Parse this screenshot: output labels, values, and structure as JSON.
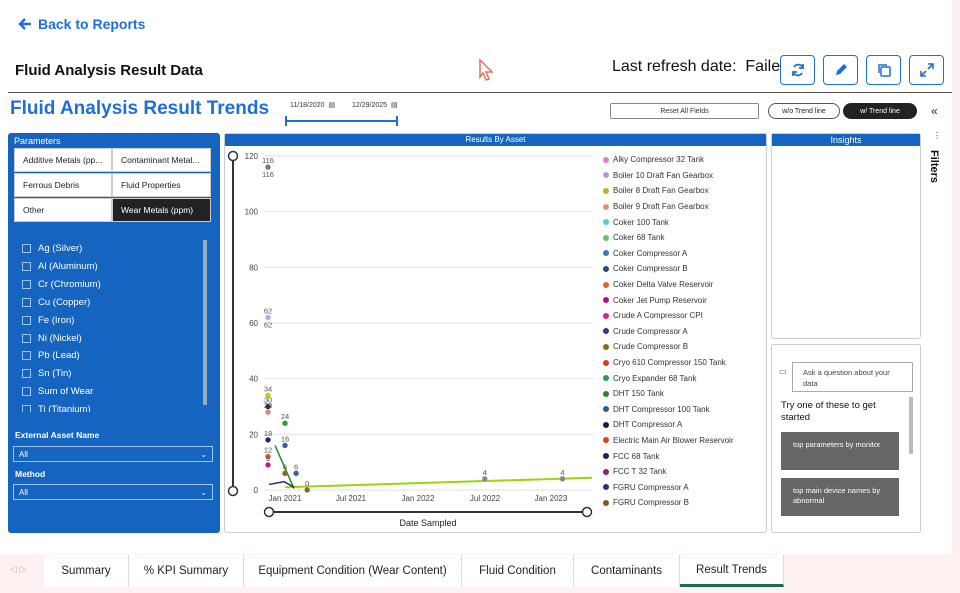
{
  "nav": {
    "back_label": "Back to Reports"
  },
  "header": {
    "title": "Fluid Analysis Result Data",
    "refresh_label": "Last refresh date:",
    "refresh_value": "Failed",
    "buttons": [
      "refresh-icon",
      "edit-icon",
      "copy-icon",
      "expand-icon"
    ]
  },
  "report": {
    "title": "Fluid Analysis Result Trends",
    "date_start": "11/18/2020",
    "date_end": "12/29/2025",
    "reset_label": "Reset All Fields",
    "trend_off_label": "w/o Trend line",
    "trend_on_label": "w/ Trend line"
  },
  "params": {
    "title": "Parameters",
    "buttons": [
      "Additive Metals (pp...",
      "Contaminant Metal...",
      "Ferrous Debris",
      "Fluid Properties",
      "Other",
      "Wear Metals (ppm)"
    ],
    "selected": "Wear Metals (ppm)",
    "checkboxes": [
      "Ag (Silver)",
      "Al (Aluminum)",
      "Cr (Chromium)",
      "Cu (Copper)",
      "Fe (Iron)",
      "Ni (Nickel)",
      "Pb (Lead)",
      "Sn (Tin)",
      "Sum of Wear",
      "Ti (Titanium)"
    ],
    "asset_label": "External Asset Name",
    "asset_value": "All",
    "method_label": "Method",
    "method_value": "All"
  },
  "chart_data": {
    "type": "scatter",
    "title": "Results By Asset",
    "xlabel": "Date Sampled",
    "ylabel": "",
    "ylim": [
      0,
      120
    ],
    "yticks": [
      0,
      20,
      40,
      60,
      80,
      100,
      120
    ],
    "xticks": [
      "Jan 2021",
      "Jul 2021",
      "Jan 2022",
      "Jul 2022",
      "Jan 2023"
    ],
    "points": [
      {
        "date": "2020-12",
        "value": 116,
        "label": "116",
        "color": "#777777"
      },
      {
        "date": "2020-12",
        "value": 62,
        "label": "62",
        "color": "#a0b8e8"
      },
      {
        "date": "2020-12",
        "value": 34,
        "label": "34",
        "color": "#cccc00"
      },
      {
        "date": "2020-12",
        "value": 30,
        "label": "30",
        "color": "#222244"
      },
      {
        "date": "2020-12",
        "value": 28,
        "label": "28",
        "color": "#e08080"
      },
      {
        "date": "2021-01",
        "value": 24,
        "label": "24",
        "color": "#2a9a3a"
      },
      {
        "date": "2020-12",
        "value": 18,
        "label": "18",
        "color": "#1a2a5a"
      },
      {
        "date": "2021-01",
        "value": 16,
        "label": "16",
        "color": "#3a5aa8"
      },
      {
        "date": "2020-12",
        "value": 12,
        "label": "12",
        "color": "#d06030"
      },
      {
        "date": "2020-12",
        "value": 9,
        "label": "9",
        "color": "#c02080"
      },
      {
        "date": "2021-02",
        "value": 6,
        "label": "6",
        "color": "#2a6a9a"
      },
      {
        "date": "2021-01",
        "value": 6,
        "label": "6",
        "color": "#8a6a2a"
      },
      {
        "date": "2021-03",
        "value": 0,
        "label": "0",
        "color": "#8a6a2a"
      },
      {
        "date": "2022-07",
        "value": 4,
        "label": "4",
        "color": "#888888"
      },
      {
        "date": "2023-02",
        "value": 4,
        "label": "4",
        "color": "#888888"
      }
    ],
    "series": [
      {
        "name": "Alky Compressor 32 Tank",
        "color": "#e87ac8"
      },
      {
        "name": "Boiler 10 Draft Fan Gearbox",
        "color": "#b39ddb"
      },
      {
        "name": "Boiler 8 Draft Fan Gearbox",
        "color": "#c8a830"
      },
      {
        "name": "Boiler 9 Draft Fan Gearbox",
        "color": "#e89080"
      },
      {
        "name": "Coker 100 Tank",
        "color": "#40d8c8"
      },
      {
        "name": "Coker 68 Tank",
        "color": "#60c860"
      },
      {
        "name": "Coker Compressor A",
        "color": "#3a78c8"
      },
      {
        "name": "Coker Compressor B",
        "color": "#2a4a7a"
      },
      {
        "name": "Coker Delta Valve Reservoir",
        "color": "#e86020"
      },
      {
        "name": "Coker Jet Pump Reservoir",
        "color": "#b01080"
      },
      {
        "name": "Crude A Compressor CPI",
        "color": "#d82090"
      },
      {
        "name": "Crude Compressor A",
        "color": "#4a2a8a"
      },
      {
        "name": "Crude Compressor B",
        "color": "#8a6a1a"
      },
      {
        "name": "Cryo 610 Compressor 150 Tank",
        "color": "#d04020"
      },
      {
        "name": "Cryo Expander 68 Tank",
        "color": "#20a050"
      },
      {
        "name": "DHT 150 Tank",
        "color": "#208a20"
      },
      {
        "name": "DHT Compressor 100 Tank",
        "color": "#2a5ab0"
      },
      {
        "name": "DHT Compressor A",
        "color": "#1a1a4a"
      },
      {
        "name": "Electric Main Air Blower Reservoir",
        "color": "#d04a10"
      },
      {
        "name": "FCC 68 Tank",
        "color": "#2a1a5a"
      },
      {
        "name": "FCC T 32 Tank",
        "color": "#9a1a7a"
      },
      {
        "name": "FGRU Compressor A",
        "color": "#3a2a7a"
      },
      {
        "name": "FGRU Compressor B",
        "color": "#7a5a1a"
      }
    ]
  },
  "insights": {
    "title": "Insights",
    "question_placeholder": "Ask a question about your data",
    "try_text": "Try one of these to get started",
    "suggestions": [
      "top parameters by monitor",
      "top main device names by abnormal"
    ],
    "filters_label": "Filters"
  },
  "tabs": [
    "Summary",
    "% KPI Summary",
    "Equipment Condition (Wear Content)",
    "Fluid Condition",
    "Contaminants",
    "Result Trends"
  ],
  "active_tab": "Result Trends"
}
